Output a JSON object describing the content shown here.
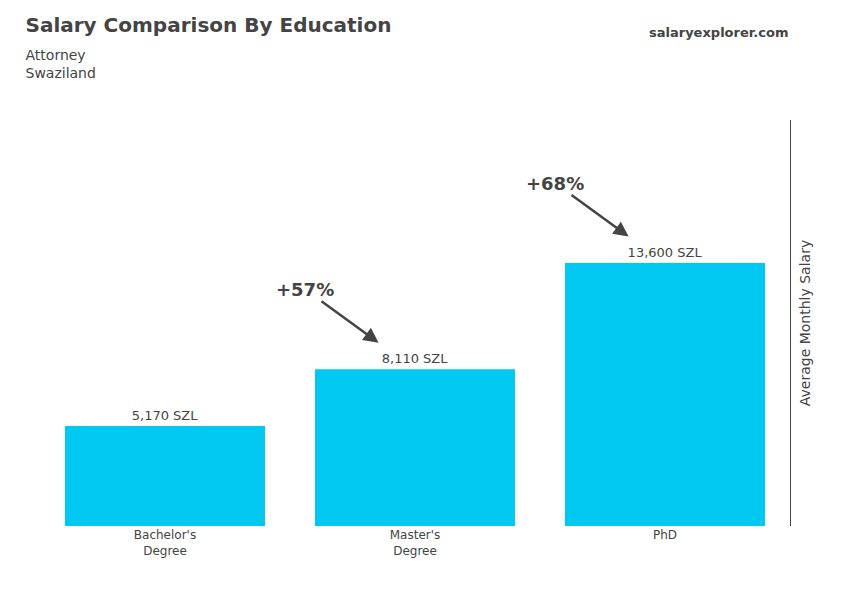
{
  "chart_data": {
    "type": "bar",
    "title": "Salary Comparison By Education",
    "subtitle": [
      "Attorney",
      "Swaziland"
    ],
    "categories": [
      "Bachelor's\nDegree",
      "Master's\nDegree",
      "PhD"
    ],
    "values": [
      5170,
      8110,
      13600
    ],
    "value_labels": [
      "5,170 SZL",
      "8,110 SZL",
      "13,600 SZL"
    ],
    "data_labels": true,
    "color": "#00c8f0",
    "ylabel": "Average Monthly Salary",
    "ylim": [
      0,
      21000
    ],
    "yticks": [],
    "tick_labels": "x",
    "grid": false,
    "annotations": [
      "+57%",
      "+68%",
      "salaryexplorer.com"
    ]
  }
}
